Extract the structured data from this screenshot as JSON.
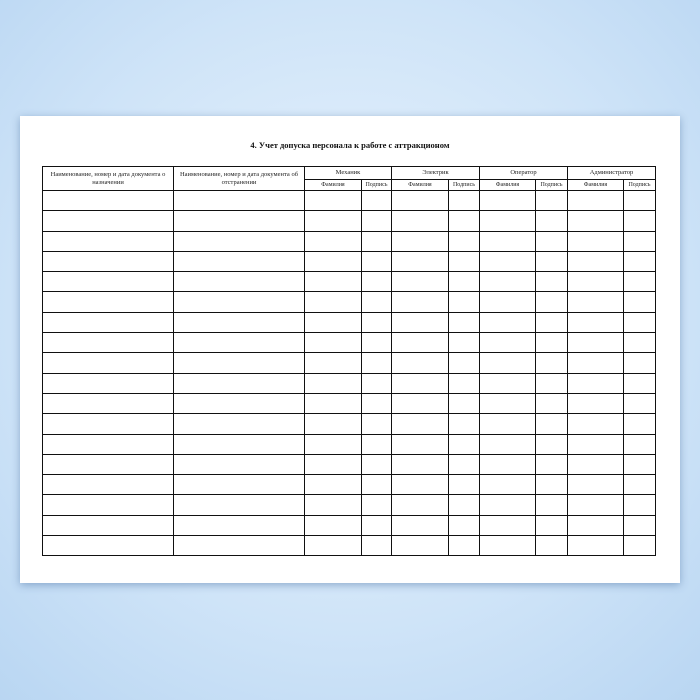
{
  "document": {
    "title": "4. Учет допуска персонала к работе с аттракционом",
    "columns": {
      "doc_assign": "Наименование, номер и дата документа о назначении",
      "doc_remove": "Наименование, номер и дата документа об отстранении",
      "groups": [
        {
          "label": "Механик",
          "sub": [
            "Фамилия",
            "Подпись"
          ]
        },
        {
          "label": "Электрик",
          "sub": [
            "Фамилия",
            "Подпись"
          ]
        },
        {
          "label": "Оператор",
          "sub": [
            "Фамилия",
            "Подпись"
          ]
        },
        {
          "label": "Администратор",
          "sub": [
            "Фамилия",
            "Подпись"
          ]
        }
      ]
    },
    "empty_rows": 18
  }
}
